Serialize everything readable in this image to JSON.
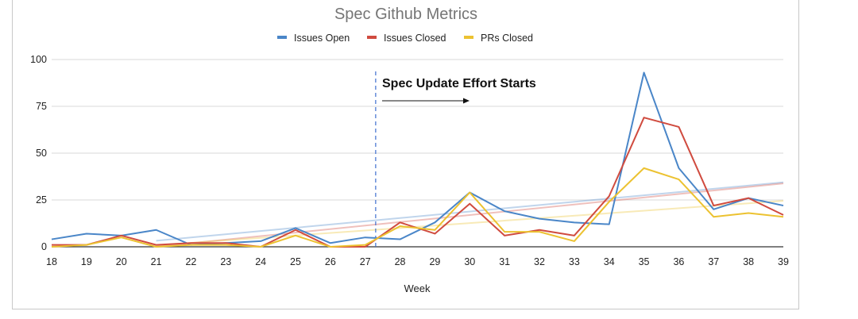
{
  "chart_data": {
    "type": "line",
    "title": "Spec Github Metrics",
    "xlabel": "Week",
    "ylabel": "",
    "x": [
      18,
      19,
      20,
      21,
      22,
      23,
      24,
      25,
      26,
      27,
      28,
      29,
      30,
      31,
      32,
      33,
      34,
      35,
      36,
      37,
      38,
      39
    ],
    "ylim": [
      0,
      100
    ],
    "yticks": [
      0,
      25,
      50,
      75,
      100
    ],
    "grid": true,
    "legend": "top",
    "trendlines": true,
    "series": [
      {
        "name": "Issues Open",
        "color": "#4a86c8",
        "values": [
          4,
          7,
          6,
          9,
          1,
          2,
          3,
          10,
          2,
          5,
          4,
          13,
          29,
          19,
          15,
          13,
          12,
          93,
          42,
          20,
          26,
          22
        ]
      },
      {
        "name": "Issues Closed",
        "color": "#d04b3f",
        "values": [
          1,
          1,
          6,
          1,
          2,
          2,
          0,
          9,
          0,
          0,
          13,
          7,
          23,
          6,
          9,
          6,
          27,
          69,
          64,
          22,
          26,
          17
        ]
      },
      {
        "name": "PRs Closed",
        "color": "#ecc231",
        "values": [
          0,
          1,
          5,
          0,
          1,
          1,
          0,
          6,
          0,
          1,
          11,
          9,
          29,
          8,
          8,
          3,
          24,
          42,
          36,
          16,
          18,
          16
        ]
      }
    ],
    "annotation": {
      "text": "Spec Update Effort Starts",
      "x": 27.3
    }
  }
}
